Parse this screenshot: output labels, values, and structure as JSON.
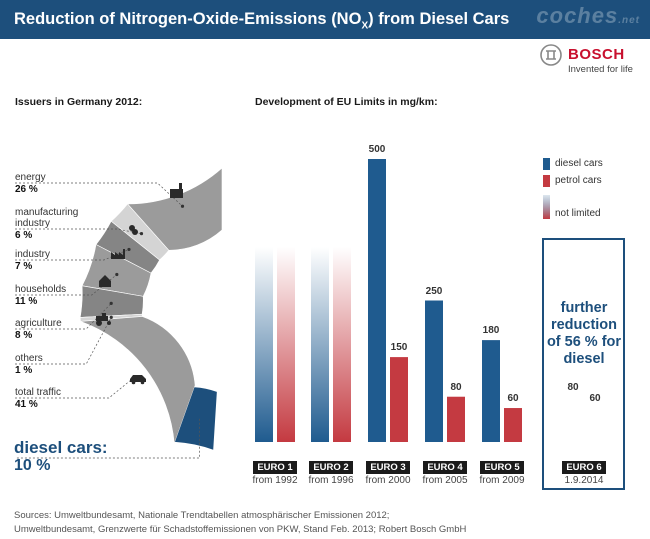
{
  "header": {
    "title_pre": "Reduction of Nitrogen-Oxide-Emissions (NO",
    "title_sub": "X",
    "title_post": ") from Diesel Cars",
    "watermark": "coches",
    "watermark_suffix": ".net"
  },
  "brand": {
    "name": "BOSCH",
    "tagline": "Invented for life"
  },
  "colors": {
    "navy": "#1d4f7c",
    "diesel": "#1f5b8f",
    "petrol": "#c43a41",
    "traffic": "#9b9b9b",
    "dark_seg": "#858585",
    "light_seg": "#d4d4d4"
  },
  "chart_data": [
    {
      "type": "pie",
      "title": "Issuers in Germany 2012:",
      "segments": [
        {
          "label": "energy",
          "value": 26,
          "pct": "26 %",
          "icon": "factory-chimney-icon"
        },
        {
          "label": "manufacturing industry",
          "value": 6,
          "pct": "6 %",
          "icon": "gears-icon"
        },
        {
          "label": "industry",
          "value": 7,
          "pct": "7 %",
          "icon": "factory-icon"
        },
        {
          "label": "households",
          "value": 11,
          "pct": "11 %",
          "icon": "house-icon"
        },
        {
          "label": "agriculture",
          "value": 8,
          "pct": "8 %",
          "icon": "tractor-icon"
        },
        {
          "label": "others",
          "value": 1,
          "pct": "1 %",
          "icon": ""
        },
        {
          "label": "total traffic",
          "value": 41,
          "pct": "41 %",
          "icon": "car-icon"
        }
      ],
      "highlight": {
        "label": "diesel cars:",
        "value": 10,
        "pct": "10 %"
      }
    },
    {
      "type": "bar",
      "title": "Development of EU Limits in mg/km:",
      "ylim": [
        0,
        500
      ],
      "categories": [
        "EURO 1",
        "EURO 2",
        "EURO 3",
        "EURO 4",
        "EURO 5",
        "EURO 6"
      ],
      "dates": [
        "from 1992",
        "from 1996",
        "from 2000",
        "from 2005",
        "from 2009",
        "1.9.2014"
      ],
      "series": [
        {
          "name": "diesel cars",
          "values": [
            null,
            null,
            500,
            250,
            180,
            80
          ]
        },
        {
          "name": "petrol cars",
          "values": [
            null,
            null,
            150,
            80,
            60,
            60
          ]
        }
      ],
      "limited": [
        false,
        false,
        true,
        true,
        true,
        true
      ],
      "legend": [
        "diesel cars",
        "petrol cars",
        "not limited"
      ],
      "annotation": "further reduction of 56 % for diesel"
    }
  ],
  "sources": [
    "Sources: Umweltbundesamt, Nationale Trendtabellen atmosphärischer Emissionen 2012;",
    "Umweltbundesamt, Grenzwerte für Schadstoffemissionen von PKW, Stand Feb. 2013; Robert Bosch GmbH"
  ]
}
